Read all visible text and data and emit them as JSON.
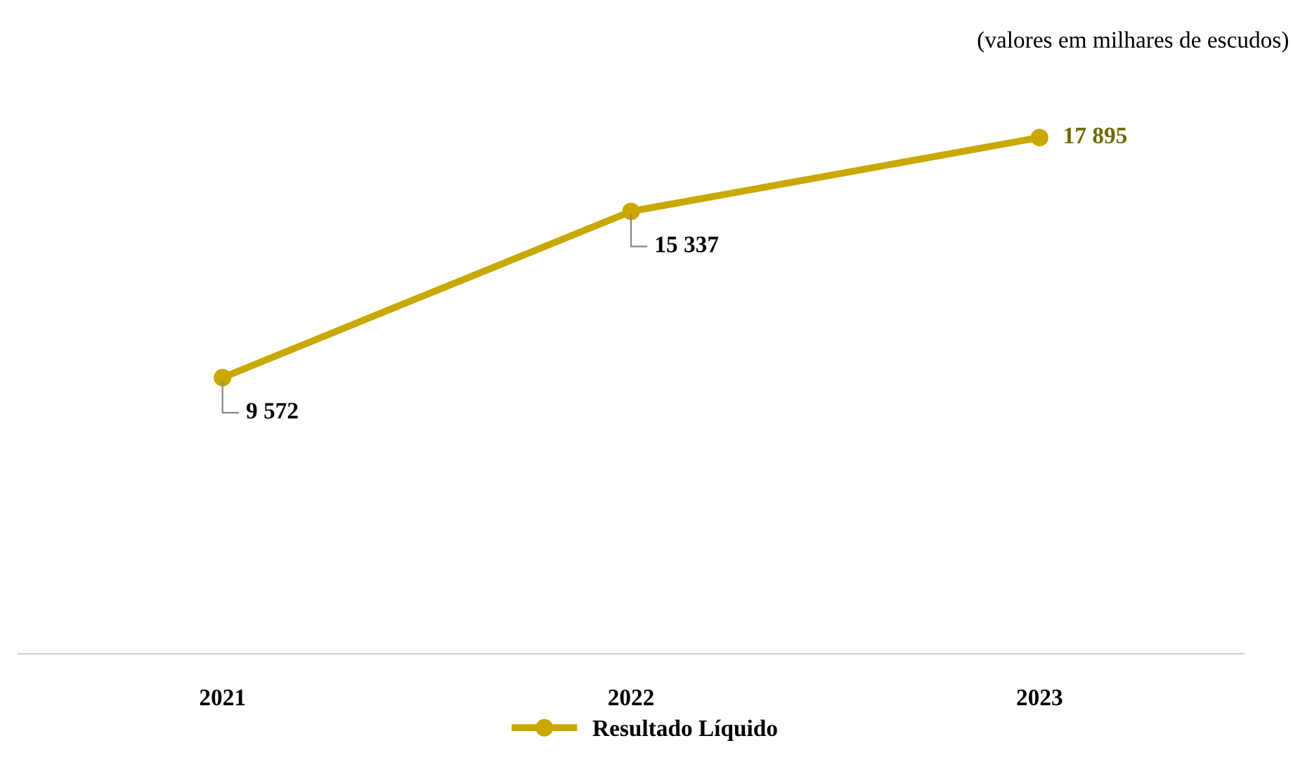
{
  "chart_data": {
    "type": "line",
    "categories": [
      "2021",
      "2022",
      "2023"
    ],
    "series": [
      {
        "name": "Resultado Líquido",
        "color": "#c9a800",
        "values": [
          9572,
          15337,
          17895
        ],
        "value_labels": [
          "9 572",
          "15 337",
          "17 895"
        ]
      }
    ],
    "tick_labels": "x",
    "marker": "circle",
    "legend": "bottom",
    "annotations": [
      "(valores em milhares de escudos)"
    ]
  }
}
